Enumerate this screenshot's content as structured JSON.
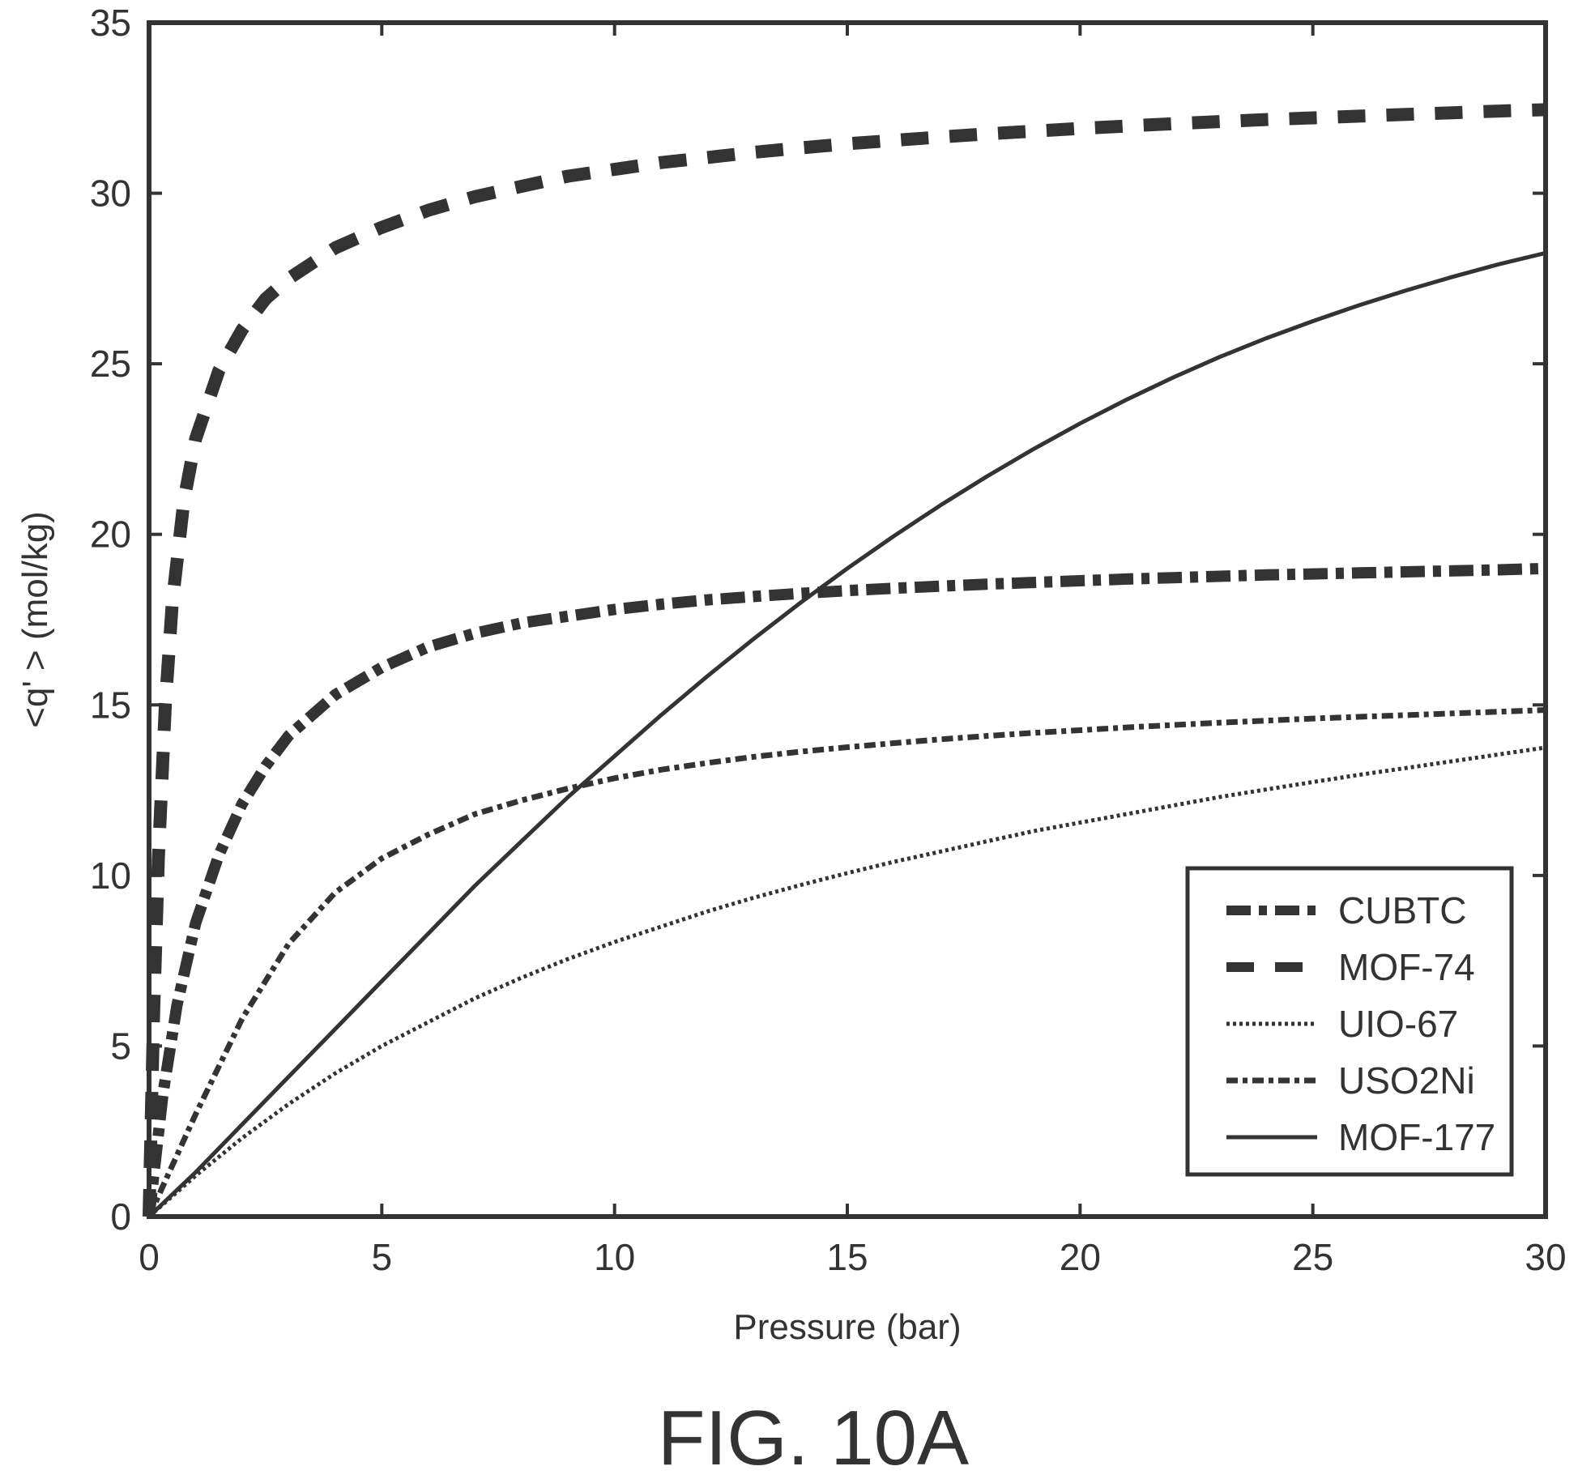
{
  "figure": {
    "caption": "FIG. 10A"
  },
  "chart_data": {
    "type": "line",
    "xlabel": "Pressure (bar)",
    "ylabel": "<q' > (mol/kg)",
    "xlim": [
      0,
      30
    ],
    "ylim": [
      0,
      35
    ],
    "xticks": [
      0,
      5,
      10,
      15,
      20,
      25,
      30
    ],
    "yticks": [
      0,
      5,
      10,
      15,
      20,
      25,
      30,
      35
    ],
    "grid": false,
    "legend_position": "bottom-right",
    "series": [
      {
        "name": "CUBTC",
        "style": "dash-dot-thick",
        "x": [
          0,
          0.3,
          0.6,
          1,
          1.5,
          2,
          2.5,
          3,
          4,
          5,
          6,
          7,
          8,
          9,
          10,
          11,
          12,
          13,
          14,
          15,
          16,
          17,
          18,
          19,
          20,
          21,
          22,
          23,
          24,
          25,
          26,
          27,
          28,
          29,
          30
        ],
        "y": [
          0,
          3.6,
          6.2,
          8.6,
          10.6,
          12.1,
          13.2,
          14.1,
          15.3,
          16.1,
          16.7,
          17.1,
          17.4,
          17.6,
          17.8,
          17.95,
          18.08,
          18.18,
          18.27,
          18.35,
          18.42,
          18.48,
          18.54,
          18.59,
          18.64,
          18.69,
          18.73,
          18.77,
          18.81,
          18.84,
          18.87,
          18.9,
          18.93,
          18.96,
          19.0
        ]
      },
      {
        "name": "MOF-74",
        "style": "dash-thick",
        "x": [
          0,
          0.1,
          0.2,
          0.35,
          0.5,
          0.75,
          1,
          1.5,
          2,
          2.5,
          3,
          4,
          5,
          6,
          7,
          8,
          9,
          10,
          11,
          12,
          13,
          14,
          15,
          16,
          17,
          18,
          19,
          20,
          21,
          22,
          23,
          24,
          25,
          26,
          27,
          28,
          29,
          30
        ],
        "y": [
          0,
          6.0,
          10.5,
          15.0,
          18.0,
          21.0,
          22.8,
          24.8,
          26.0,
          26.9,
          27.5,
          28.4,
          29.0,
          29.5,
          29.9,
          30.2,
          30.5,
          30.7,
          30.9,
          31.05,
          31.2,
          31.33,
          31.45,
          31.55,
          31.65,
          31.74,
          31.82,
          31.9,
          31.97,
          32.04,
          32.1,
          32.16,
          32.21,
          32.26,
          32.31,
          32.36,
          32.41,
          32.45
        ]
      },
      {
        "name": "UIO-67",
        "style": "dotted",
        "x": [
          0,
          1,
          2,
          3,
          4,
          5,
          6,
          7,
          8,
          9,
          10,
          11,
          12,
          13,
          14,
          15,
          16,
          17,
          18,
          19,
          20,
          21,
          22,
          23,
          24,
          25,
          26,
          27,
          28,
          29,
          30
        ],
        "y": [
          0,
          1.2,
          2.3,
          3.3,
          4.2,
          5.0,
          5.7,
          6.4,
          7.0,
          7.55,
          8.05,
          8.5,
          8.95,
          9.35,
          9.72,
          10.07,
          10.4,
          10.7,
          11.0,
          11.3,
          11.55,
          11.8,
          12.05,
          12.3,
          12.52,
          12.74,
          12.95,
          13.15,
          13.35,
          13.55,
          13.75
        ]
      },
      {
        "name": "USO2Ni",
        "style": "dash-dot-thin",
        "x": [
          0,
          1,
          2,
          3,
          4,
          5,
          6,
          7,
          8,
          9,
          10,
          11,
          12,
          13,
          14,
          15,
          16,
          17,
          18,
          19,
          20,
          21,
          22,
          23,
          24,
          25,
          26,
          27,
          28,
          29,
          30
        ],
        "y": [
          0,
          3.0,
          5.8,
          8.0,
          9.5,
          10.5,
          11.2,
          11.8,
          12.2,
          12.55,
          12.85,
          13.1,
          13.3,
          13.48,
          13.63,
          13.76,
          13.88,
          13.99,
          14.09,
          14.18,
          14.26,
          14.34,
          14.41,
          14.48,
          14.54,
          14.6,
          14.65,
          14.7,
          14.75,
          14.8,
          14.85
        ]
      },
      {
        "name": "MOF-177",
        "style": "solid",
        "x": [
          0,
          1,
          2,
          3,
          4,
          5,
          6,
          7,
          8,
          9,
          10,
          11,
          12,
          13,
          14,
          15,
          16,
          17,
          18,
          19,
          20,
          21,
          22,
          23,
          24,
          25,
          26,
          27,
          28,
          29,
          30
        ],
        "y": [
          0,
          1.3,
          2.7,
          4.1,
          5.5,
          6.9,
          8.3,
          9.7,
          11.0,
          12.3,
          13.5,
          14.7,
          15.85,
          16.95,
          18.0,
          19.0,
          19.95,
          20.85,
          21.7,
          22.5,
          23.25,
          23.95,
          24.6,
          25.2,
          25.75,
          26.25,
          26.72,
          27.15,
          27.55,
          27.92,
          28.25
        ]
      }
    ],
    "series_colors": {
      "line": "#333333"
    }
  }
}
